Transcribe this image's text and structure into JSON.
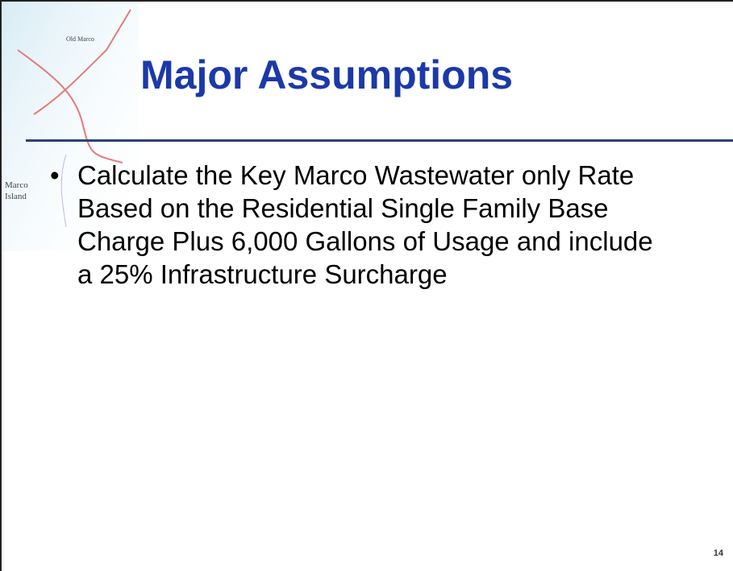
{
  "slide": {
    "title": "Major Assumptions",
    "bullets": [
      "Calculate the Key Marco Wastewater only Rate Based on the Residential Single Family Base Charge Plus 6,000 Gallons of Usage and include a 25% Infrastructure Surcharge"
    ],
    "map_labels": [
      "Old Marco",
      "Marco",
      "Island"
    ],
    "page_number": "14"
  }
}
